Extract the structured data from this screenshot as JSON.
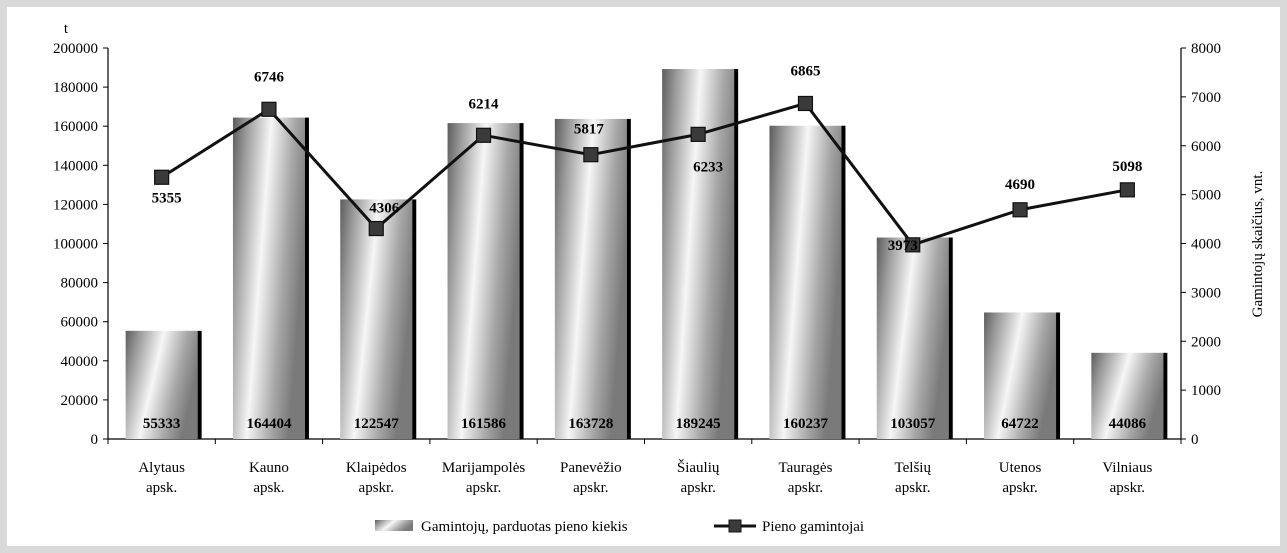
{
  "chart_data": {
    "type": "bar",
    "categories": [
      [
        "Alytaus",
        "apsk."
      ],
      [
        "Kauno",
        "apsk."
      ],
      [
        "Klaipėdos",
        "apskr."
      ],
      [
        "Marijampolės",
        "apskr."
      ],
      [
        "Panevėžio",
        "apskr."
      ],
      [
        "Šiaulių",
        "apskr."
      ],
      [
        "Tauragės",
        "apskr."
      ],
      [
        "Telšių",
        "apskr."
      ],
      [
        "Utenos",
        "apskr."
      ],
      [
        "Vilniaus",
        "apskr."
      ]
    ],
    "series": [
      {
        "name": "Gamintojų, parduotas pieno kiekis",
        "type": "bar",
        "axis": "left",
        "values": [
          55333,
          164404,
          122547,
          161586,
          163728,
          189245,
          160237,
          103057,
          64722,
          44086
        ],
        "labels": [
          "55333",
          "164404",
          "122547",
          "161586",
          "163728",
          "189245",
          "160237",
          "103057",
          "64722",
          "44086"
        ]
      },
      {
        "name": "Pieno gamintojai",
        "type": "line",
        "axis": "right",
        "values": [
          5355,
          6746,
          4306,
          6214,
          5817,
          6233,
          6865,
          3973,
          4690,
          5098
        ],
        "labels": [
          "5355",
          "6746",
          "4306",
          "6214",
          "5817",
          "6233",
          "6865",
          "3973",
          "4690",
          "5098"
        ]
      }
    ],
    "y_left": {
      "unit_label": "t",
      "ylim": [
        0,
        200000
      ],
      "ticks": [
        "0",
        "20000",
        "40000",
        "60000",
        "80000",
        "100000",
        "120000",
        "140000",
        "160000",
        "180000",
        "200000"
      ]
    },
    "y_right": {
      "label": "Gamintojų skaičius, vnt.",
      "ylim": [
        0,
        8000
      ],
      "ticks": [
        "0",
        "1000",
        "2000",
        "3000",
        "4000",
        "5000",
        "6000",
        "7000",
        "8000"
      ]
    },
    "grid": false,
    "legend_position": "bottom",
    "colors": {
      "line": "#111111",
      "marker": "#3a3a3a",
      "bar_light": "#f4f4f4",
      "bar_dark": "#6e6e6e",
      "bar_edge": "#000000"
    }
  }
}
